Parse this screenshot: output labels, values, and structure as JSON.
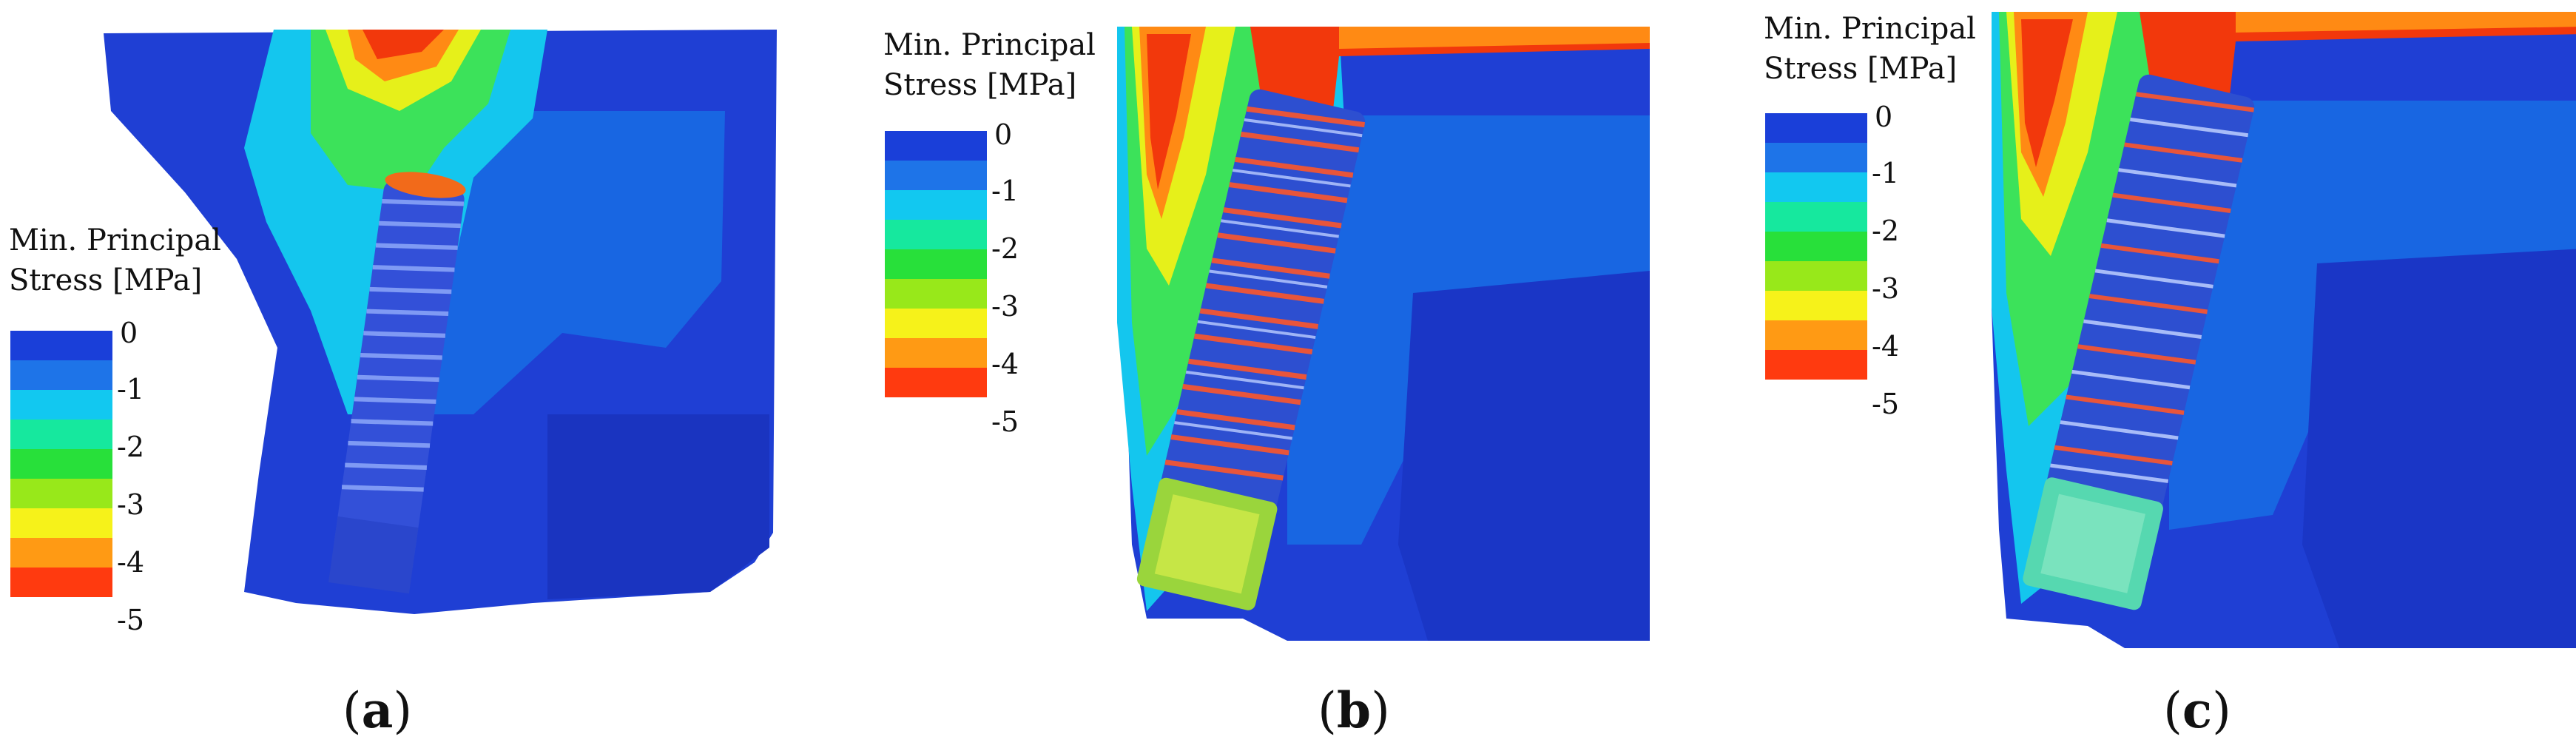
{
  "legend": {
    "title": "Min. Principal\nStress [MPa]",
    "ticks": [
      "0",
      "-1",
      "-2",
      "-3",
      "-4",
      "-5"
    ],
    "colors": [
      "#1a3fd9",
      "#1e74e8",
      "#12c8f0",
      "#16e89e",
      "#28e03a",
      "#98e81a",
      "#f6f21a",
      "#ff9a14",
      "#ff3a0f"
    ]
  },
  "panels": [
    {
      "id": "a",
      "label_open": "(",
      "label_letter": "a",
      "label_close": ")"
    },
    {
      "id": "b",
      "label_open": "(",
      "label_letter": "b",
      "label_close": ")"
    },
    {
      "id": "c",
      "label_open": "(",
      "label_letter": "c",
      "label_close": ")"
    }
  ],
  "palette": {
    "bone_blue": "#1f3fd4",
    "bone_mid": "#1768e0",
    "cyan": "#14c6ee",
    "green": "#3ce25a",
    "yellow": "#e6f01a",
    "orange": "#ff8a14",
    "red": "#f2380c",
    "implant": "#3350d8"
  }
}
